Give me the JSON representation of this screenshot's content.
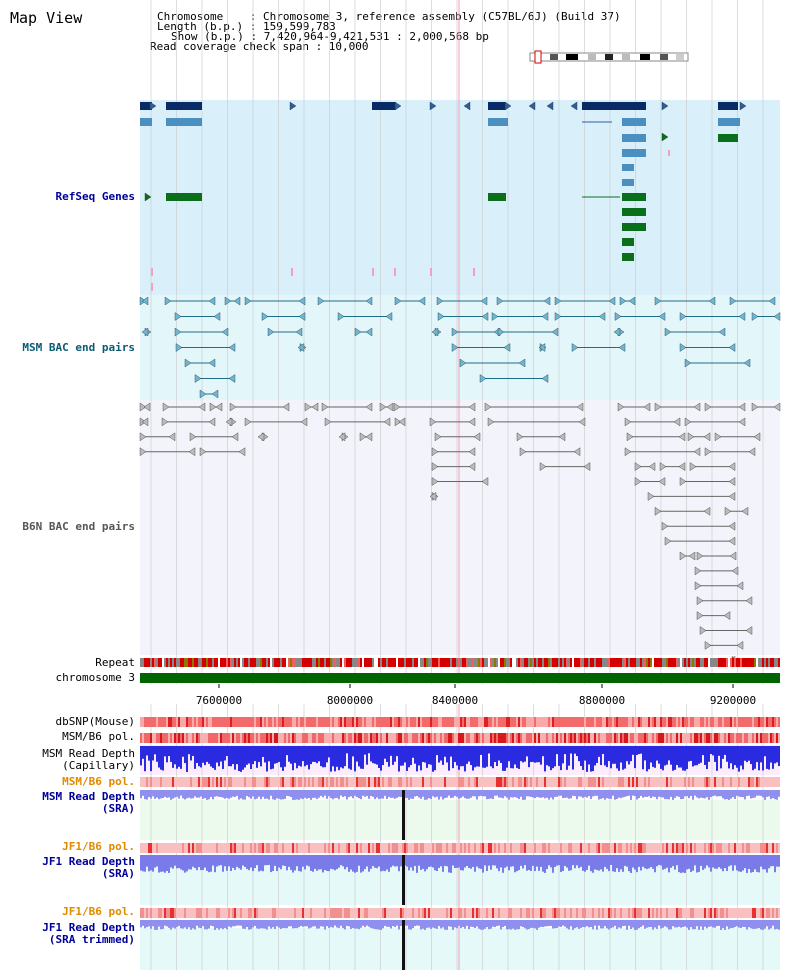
{
  "header": {
    "title": "Map View",
    "chromosome_label": "Chromosome    : Chromosome 3, reference assembly (C57BL/6J) (Build 37)",
    "length_label": "Length (b.p.) : 159,599,783",
    "show_label": "Show (b.p.) : 7,420,964-9,421,531 : 2,000,568 bp",
    "coverage_label": "Read coverage check span : 10,000"
  },
  "tracks": {
    "refseq": {
      "label": "RefSeq Genes",
      "color": "#000099"
    },
    "msm_bac": {
      "label": "MSM BAC end pairs",
      "color": "#0b5a74"
    },
    "b6n_bac": {
      "label": "B6N BAC end pairs",
      "color": "#555555"
    },
    "repeat": {
      "label": "Repeat"
    },
    "chromosome": {
      "label": "chromosome 3",
      "color": "#006400"
    },
    "dbsnp": {
      "label": "dbSNP(Mouse)"
    },
    "msm_pol1": {
      "label": "MSM/B6 pol."
    },
    "msm_depth_cap": {
      "label1": "MSM Read Depth",
      "label2": "(Capillary)"
    },
    "msm_pol2": {
      "label": "MSM/B6 pol.",
      "color": "#e08a00"
    },
    "msm_depth_sra": {
      "label1": "MSM Read Depth",
      "label2": "(SRA)",
      "color": "#000099"
    },
    "jf1_pol1": {
      "label": "JF1/B6 pol.",
      "color": "#e08a00"
    },
    "jf1_depth": {
      "label1": "JF1 Read Depth",
      "label2": "(SRA)",
      "color": "#000099"
    },
    "jf1_pol2": {
      "label": "JF1/B6 pol.",
      "color": "#e08a00"
    },
    "jf1_depth_trim": {
      "label1": "JF1 Read Depth",
      "label2": "(SRA trimmed)",
      "color": "#000099"
    }
  },
  "axis": {
    "ticks": [
      "7600000",
      "8000000",
      "8400000",
      "8800000",
      "9200000"
    ]
  }
}
